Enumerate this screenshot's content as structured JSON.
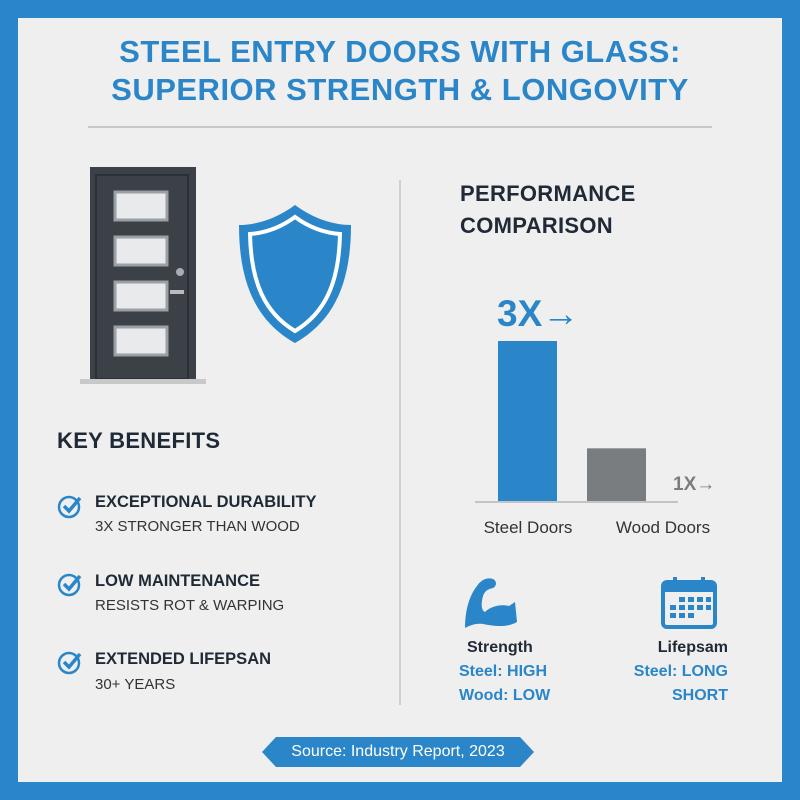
{
  "title": {
    "line1": "STEEL ENTRY DOORS WITH GLASS:",
    "line2": "SUPERIOR STRENGTH & LONGOVITY"
  },
  "benefits": {
    "heading": "KEY BENEFITS",
    "items": [
      {
        "title": "EXCEPTIONAL DURABILITY",
        "subtitle": "3X STRONGER THAN WOOD"
      },
      {
        "title": "LOW MAINTENANCE",
        "subtitle": "RESISTS ROT & WARPING"
      },
      {
        "title": "EXTENDED LIFEPSAN",
        "subtitle": "30+ YEARS"
      }
    ]
  },
  "comparison": {
    "heading_line1": "PERFORMANCE",
    "heading_line2": "COMPARISON"
  },
  "chart_data": {
    "type": "bar",
    "categories": [
      "Steel Doors",
      "Wood Doors"
    ],
    "values": [
      3,
      1
    ],
    "data_labels": [
      "3X→",
      "1X→"
    ],
    "colors": [
      "#2a86c8",
      "#7a7d80"
    ],
    "grid": false
  },
  "stats": {
    "strength": {
      "icon": "flexed-arm-icon",
      "title": "Strength",
      "line1": "Steel: HIGH",
      "line2": "Wood: LOW"
    },
    "lifespan": {
      "icon": "calendar-icon",
      "title": "Lifepsam",
      "line1": "Steel: LONG",
      "line2": "SHORT"
    }
  },
  "source": "Source: Industry Report, 2023",
  "colors": {
    "accent": "#2a86c8",
    "door": "#3b4147",
    "background": "#efefef"
  }
}
